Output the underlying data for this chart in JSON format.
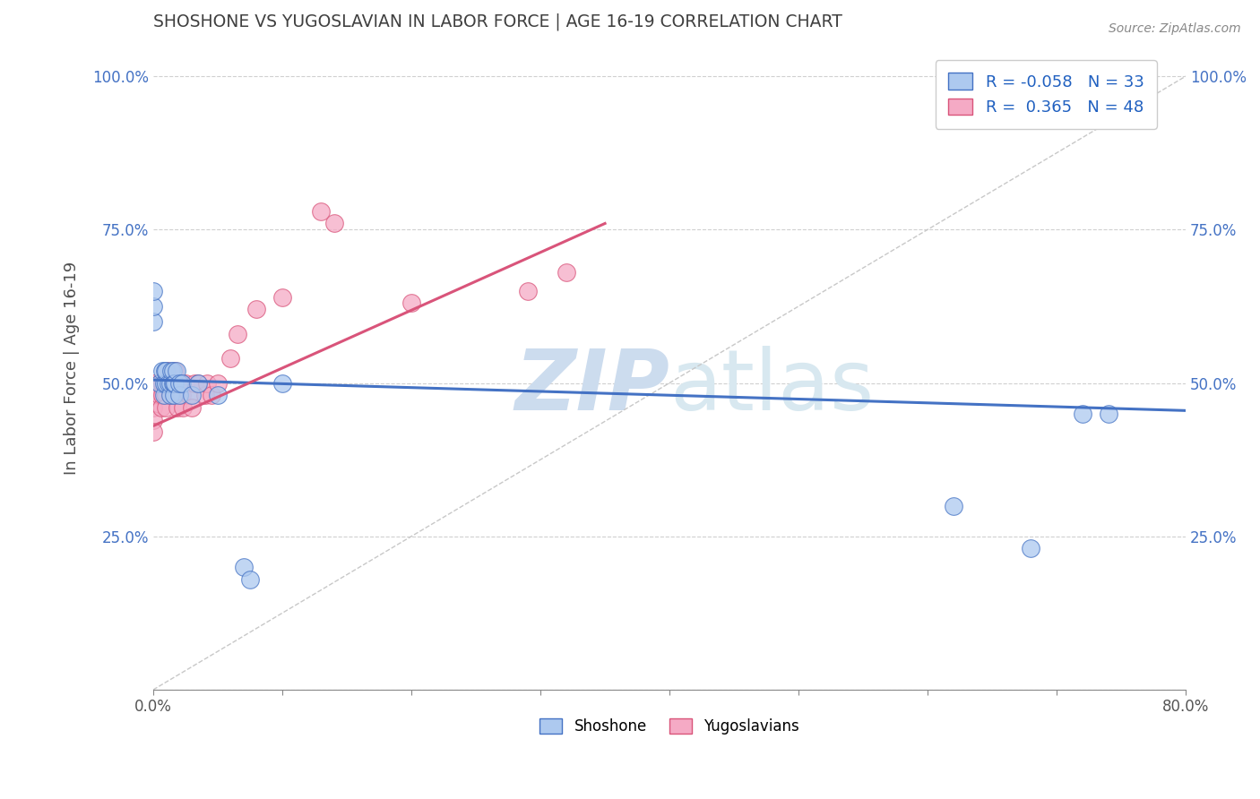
{
  "title": "SHOSHONE VS YUGOSLAVIAN IN LABOR FORCE | AGE 16-19 CORRELATION CHART",
  "source_text": "Source: ZipAtlas.com",
  "ylabel": "In Labor Force | Age 16-19",
  "shoshone_R": -0.058,
  "shoshone_N": 33,
  "yugoslavian_R": 0.365,
  "yugoslavian_N": 48,
  "shoshone_color": "#adc9ef",
  "yugoslavian_color": "#f5aac5",
  "shoshone_line_color": "#4472c4",
  "yugoslavian_line_color": "#d9547a",
  "diagonal_color": "#c8c8c8",
  "grid_color": "#d0d0d0",
  "title_color": "#404040",
  "axis_label_color": "#4472c4",
  "watermark_color": "#ccdcee",
  "shoshone_x": [
    0.0,
    0.0,
    0.0,
    0.005,
    0.007,
    0.008,
    0.008,
    0.009,
    0.01,
    0.01,
    0.012,
    0.013,
    0.013,
    0.014,
    0.015,
    0.015,
    0.016,
    0.016,
    0.017,
    0.018,
    0.02,
    0.02,
    0.022,
    0.03,
    0.035,
    0.05,
    0.07,
    0.075,
    0.1,
    0.62,
    0.68,
    0.72,
    0.74
  ],
  "shoshone_y": [
    0.6,
    0.625,
    0.65,
    0.5,
    0.52,
    0.48,
    0.5,
    0.52,
    0.5,
    0.52,
    0.5,
    0.48,
    0.5,
    0.52,
    0.5,
    0.52,
    0.48,
    0.5,
    0.5,
    0.52,
    0.48,
    0.5,
    0.5,
    0.48,
    0.5,
    0.48,
    0.2,
    0.18,
    0.5,
    0.3,
    0.23,
    0.45,
    0.45
  ],
  "yugoslavian_x": [
    0.0,
    0.0,
    0.0,
    0.0,
    0.0,
    0.005,
    0.005,
    0.006,
    0.007,
    0.007,
    0.01,
    0.01,
    0.01,
    0.011,
    0.011,
    0.012,
    0.013,
    0.014,
    0.015,
    0.015,
    0.016,
    0.017,
    0.018,
    0.018,
    0.019,
    0.02,
    0.021,
    0.022,
    0.022,
    0.023,
    0.025,
    0.028,
    0.03,
    0.032,
    0.035,
    0.04,
    0.042,
    0.045,
    0.05,
    0.06,
    0.065,
    0.08,
    0.1,
    0.13,
    0.14,
    0.2,
    0.29,
    0.32
  ],
  "yugoslavian_y": [
    0.5,
    0.48,
    0.46,
    0.44,
    0.42,
    0.5,
    0.48,
    0.46,
    0.5,
    0.48,
    0.5,
    0.48,
    0.46,
    0.5,
    0.52,
    0.5,
    0.48,
    0.5,
    0.5,
    0.48,
    0.5,
    0.52,
    0.48,
    0.5,
    0.46,
    0.48,
    0.5,
    0.48,
    0.5,
    0.46,
    0.5,
    0.48,
    0.46,
    0.5,
    0.5,
    0.48,
    0.5,
    0.48,
    0.5,
    0.54,
    0.58,
    0.62,
    0.64,
    0.78,
    0.76,
    0.63,
    0.65,
    0.68
  ],
  "xlim": [
    0.0,
    0.8
  ],
  "ylim": [
    0.0,
    1.05
  ],
  "x_ticks": [
    0.0,
    0.1,
    0.2,
    0.3,
    0.4,
    0.5,
    0.6,
    0.7,
    0.8
  ],
  "x_tick_labels_show": [
    true,
    false,
    false,
    false,
    false,
    false,
    false,
    false,
    true
  ],
  "y_ticks": [
    0.0,
    0.25,
    0.5,
    0.75,
    1.0
  ],
  "y_tick_labels": [
    "",
    "25.0%",
    "50.0%",
    "75.0%",
    "100.0%"
  ]
}
